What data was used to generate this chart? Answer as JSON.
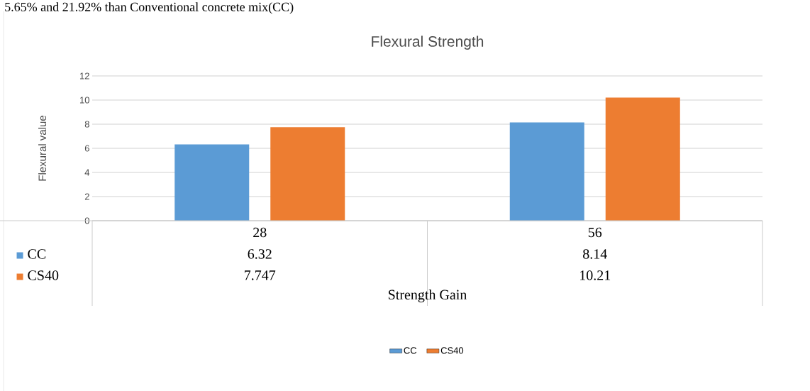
{
  "chart_data": {
    "type": "bar",
    "title": "Flexural Strength",
    "ylabel": "Flexural value",
    "xlabel": "Strength Gain",
    "annotations": [
      "5.65% and 21.92%  than Conventional concrete mix(CC)"
    ],
    "categories": [
      "28",
      "56"
    ],
    "series": [
      {
        "name": "CC",
        "color": "#5b9bd5",
        "values": [
          6.32,
          8.14
        ]
      },
      {
        "name": "CS40",
        "color": "#ed7d31",
        "values": [
          7.747,
          10.21
        ]
      }
    ],
    "ylim": [
      0,
      12
    ],
    "yticks": [
      0,
      2,
      4,
      6,
      8,
      10,
      12
    ],
    "grid": "y",
    "legend": "bottom",
    "data_labels": true
  }
}
